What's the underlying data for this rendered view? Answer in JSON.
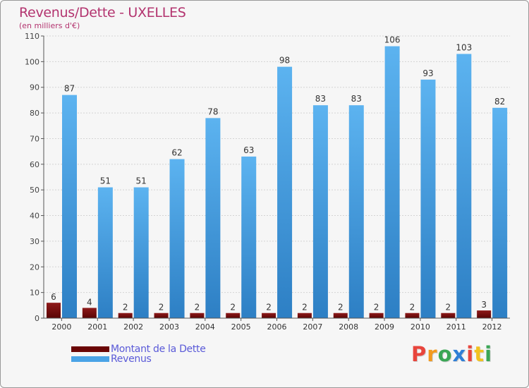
{
  "chart_data": {
    "type": "bar",
    "title": "Revenus/Dette - UXELLES",
    "subtitle": "(en milliers d'€)",
    "categories": [
      "2000",
      "2001",
      "2002",
      "2003",
      "2004",
      "2005",
      "2006",
      "2007",
      "2008",
      "2009",
      "2010",
      "2011",
      "2012"
    ],
    "series": [
      {
        "name": "Montant de la Dette",
        "color": "#7a0a0a",
        "values": [
          6,
          4,
          2,
          2,
          2,
          2,
          2,
          2,
          2,
          2,
          2,
          2,
          3
        ]
      },
      {
        "name": "Revenus",
        "color": "#4aa3e6",
        "values": [
          87,
          51,
          51,
          62,
          78,
          63,
          98,
          83,
          83,
          106,
          93,
          103,
          82
        ]
      }
    ],
    "ylim": [
      0,
      110
    ],
    "yticks": [
      0,
      10,
      20,
      30,
      40,
      50,
      60,
      70,
      80,
      90,
      100,
      110
    ],
    "grid": true,
    "legend_position": "bottom-left"
  },
  "legend": {
    "debt_label": "Montant de la Dette",
    "revenue_label": "Revenus",
    "debt_color": "#6a0606",
    "revenue_color": "#4aa3e6"
  },
  "logo": {
    "letters": [
      "P",
      "r",
      "o",
      "x",
      "i",
      "t",
      "i"
    ],
    "colors": [
      "#e8453c",
      "#f29a1f",
      "#3aa655",
      "#2f7fd6",
      "#e8453c",
      "#f2c21f",
      "#3aa655"
    ]
  }
}
